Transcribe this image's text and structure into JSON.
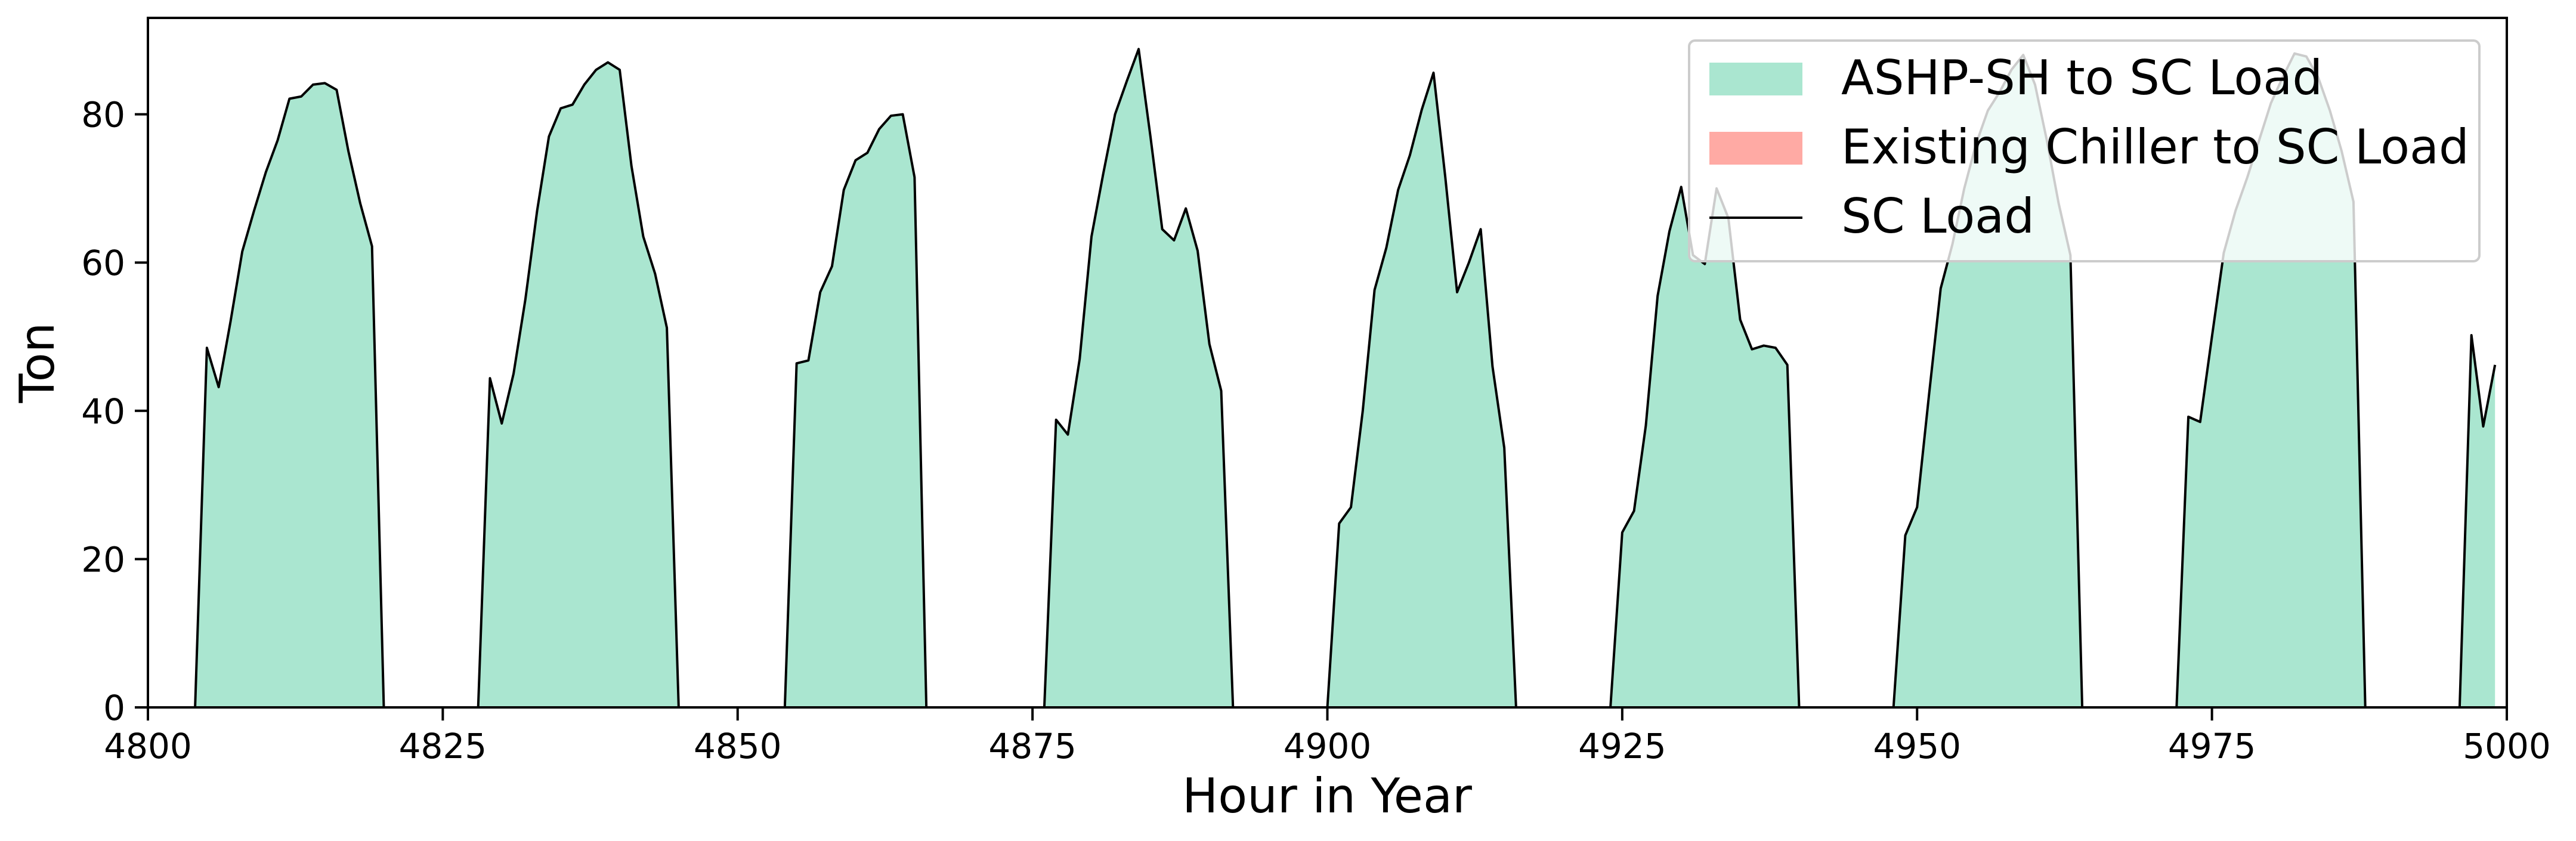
{
  "chart_data": {
    "type": "area",
    "xlabel": "Hour in Year",
    "ylabel": "Ton",
    "xlim": [
      4800,
      5000
    ],
    "ylim": [
      0,
      93
    ],
    "xticks": [
      4800,
      4825,
      4850,
      4875,
      4900,
      4925,
      4950,
      4975,
      5000
    ],
    "yticks": [
      0,
      20,
      40,
      60,
      80
    ],
    "grid": false,
    "legend_position": "top-right",
    "series": [
      {
        "name": "ASHP-SH to SC Load",
        "kind": "area",
        "color": "#aae6d0"
      },
      {
        "name": "Existing Chiller to SC Load",
        "kind": "area",
        "color": "#ffaaa4"
      },
      {
        "name": "SC Load",
        "kind": "line",
        "color": "#000000"
      }
    ],
    "points": [
      [
        4804,
        0
      ],
      [
        4805,
        48.5
      ],
      [
        4806,
        43.2
      ],
      [
        4807,
        52
      ],
      [
        4808,
        61.5
      ],
      [
        4809,
        67
      ],
      [
        4810,
        72.2
      ],
      [
        4811,
        76.5
      ],
      [
        4812,
        82.1
      ],
      [
        4813,
        82.4
      ],
      [
        4814,
        84
      ],
      [
        4815,
        84.2
      ],
      [
        4816,
        83.3
      ],
      [
        4817,
        75
      ],
      [
        4818,
        68
      ],
      [
        4819,
        62.2
      ],
      [
        4820,
        0
      ],
      [
        4828,
        0
      ],
      [
        4829,
        44.4
      ],
      [
        4830,
        38.3
      ],
      [
        4831,
        45
      ],
      [
        4832,
        55
      ],
      [
        4833,
        67
      ],
      [
        4834,
        77
      ],
      [
        4835,
        80.8
      ],
      [
        4836,
        81.3
      ],
      [
        4837,
        84
      ],
      [
        4838,
        86
      ],
      [
        4839,
        87
      ],
      [
        4840,
        86
      ],
      [
        4841,
        73
      ],
      [
        4842,
        63.5
      ],
      [
        4843,
        58.5
      ],
      [
        4844,
        51.2
      ],
      [
        4845,
        0
      ],
      [
        4854,
        0
      ],
      [
        4855,
        46.4
      ],
      [
        4856,
        46.8
      ],
      [
        4857,
        56
      ],
      [
        4858,
        59.5
      ],
      [
        4859,
        69.8
      ],
      [
        4860,
        73.8
      ],
      [
        4861,
        74.8
      ],
      [
        4862,
        78
      ],
      [
        4863,
        79.8
      ],
      [
        4864,
        80
      ],
      [
        4865,
        71.5
      ],
      [
        4866,
        0
      ],
      [
        4876,
        0
      ],
      [
        4877,
        38.8
      ],
      [
        4878,
        36.8
      ],
      [
        4879,
        47
      ],
      [
        4880,
        63.5
      ],
      [
        4881,
        72
      ],
      [
        4882,
        80
      ],
      [
        4883,
        84.5
      ],
      [
        4884,
        88.8
      ],
      [
        4885,
        77
      ],
      [
        4886,
        64.5
      ],
      [
        4887,
        63
      ],
      [
        4888,
        67.3
      ],
      [
        4889,
        61.6
      ],
      [
        4890,
        49
      ],
      [
        4891,
        42.7
      ],
      [
        4892,
        0
      ],
      [
        4900,
        0
      ],
      [
        4901,
        24.8
      ],
      [
        4902,
        27
      ],
      [
        4903,
        40
      ],
      [
        4904,
        56.3
      ],
      [
        4905,
        62
      ],
      [
        4906,
        69.8
      ],
      [
        4907,
        74.5
      ],
      [
        4908,
        80.6
      ],
      [
        4909,
        85.6
      ],
      [
        4910,
        71.5
      ],
      [
        4911,
        56
      ],
      [
        4912,
        60
      ],
      [
        4913,
        64.5
      ],
      [
        4914,
        46
      ],
      [
        4915,
        35
      ],
      [
        4916,
        0
      ],
      [
        4924,
        0
      ],
      [
        4925,
        23.6
      ],
      [
        4926,
        26.5
      ],
      [
        4927,
        38
      ],
      [
        4928,
        55.5
      ],
      [
        4929,
        64.2
      ],
      [
        4930,
        70.2
      ],
      [
        4931,
        61
      ],
      [
        4932,
        59.8
      ],
      [
        4933,
        70
      ],
      [
        4934,
        66
      ],
      [
        4935,
        52.3
      ],
      [
        4936,
        48.3
      ],
      [
        4937,
        48.8
      ],
      [
        4938,
        48.5
      ],
      [
        4939,
        46.2
      ],
      [
        4940,
        0
      ],
      [
        4948,
        0
      ],
      [
        4949,
        23.2
      ],
      [
        4950,
        27
      ],
      [
        4951,
        42
      ],
      [
        4952,
        56.5
      ],
      [
        4953,
        62.5
      ],
      [
        4954,
        70
      ],
      [
        4955,
        76
      ],
      [
        4956,
        80.5
      ],
      [
        4957,
        83
      ],
      [
        4958,
        86
      ],
      [
        4959,
        88
      ],
      [
        4960,
        84
      ],
      [
        4961,
        76.5
      ],
      [
        4962,
        68
      ],
      [
        4963,
        61
      ],
      [
        4964,
        0
      ],
      [
        4972,
        0
      ],
      [
        4973,
        39.2
      ],
      [
        4974,
        38.5
      ],
      [
        4975,
        50
      ],
      [
        4976,
        61.3
      ],
      [
        4977,
        67
      ],
      [
        4978,
        71.5
      ],
      [
        4979,
        76.5
      ],
      [
        4980,
        81.5
      ],
      [
        4981,
        85
      ],
      [
        4982,
        88.2
      ],
      [
        4983,
        87.8
      ],
      [
        4984,
        85
      ],
      [
        4985,
        80.5
      ],
      [
        4986,
        75
      ],
      [
        4987,
        68.2
      ],
      [
        4988,
        0
      ],
      [
        4996,
        0
      ],
      [
        4997,
        50.2
      ],
      [
        4998,
        37.9
      ],
      [
        4999,
        46.2
      ]
    ]
  }
}
